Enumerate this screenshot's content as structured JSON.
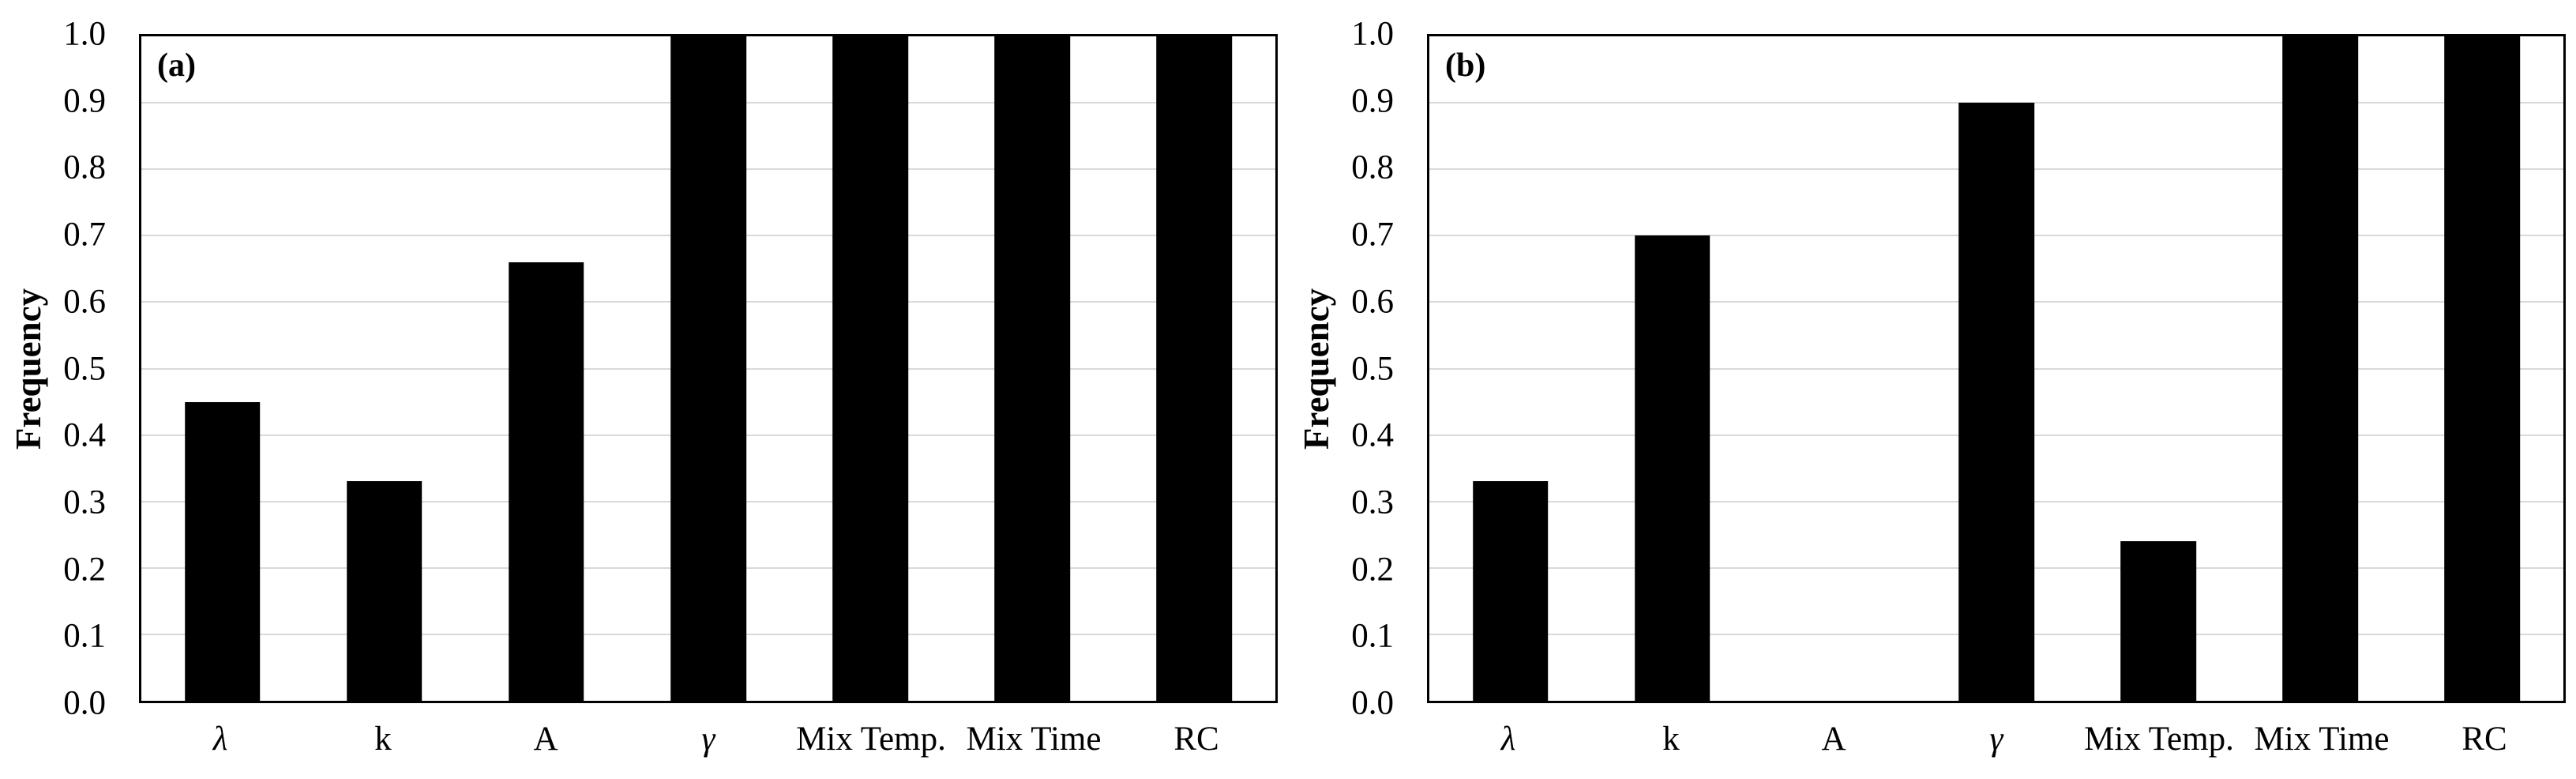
{
  "figure": {
    "background": "#ffffff",
    "text_color": "#000000",
    "panel_count": 2
  },
  "chart_data": [
    {
      "type": "bar",
      "panel_label": "(a)",
      "ylabel": "Frequency",
      "categories": [
        "λ",
        "k",
        "A",
        "γ",
        "Mix Temp.",
        "Mix Time",
        "RC"
      ],
      "values": [
        0.45,
        0.33,
        0.66,
        1.0,
        1.0,
        1.0,
        1.0
      ],
      "ylim": [
        0.0,
        1.0
      ],
      "ytick_step": 0.1,
      "ytick_labels": [
        "1.0",
        "0.9",
        "0.8",
        "0.7",
        "0.6",
        "0.5",
        "0.4",
        "0.3",
        "0.2",
        "0.1",
        "0.0"
      ],
      "xlabel": "",
      "grid": true,
      "gridline_color": "#d9d9d9",
      "axis_color": "#000000",
      "bar_color": "#000000",
      "italic_categories": [
        "λ",
        "γ"
      ],
      "legend": "none"
    },
    {
      "type": "bar",
      "panel_label": "(b)",
      "ylabel": "Frequency",
      "categories": [
        "λ",
        "k",
        "A",
        "γ",
        "Mix Temp.",
        "Mix Time",
        "RC"
      ],
      "values": [
        0.33,
        0.7,
        0.0,
        0.9,
        0.24,
        1.0,
        1.0
      ],
      "ylim": [
        0.0,
        1.0
      ],
      "ytick_step": 0.1,
      "ytick_labels": [
        "1.0",
        "0.9",
        "0.8",
        "0.7",
        "0.6",
        "0.5",
        "0.4",
        "0.3",
        "0.2",
        "0.1",
        "0.0"
      ],
      "xlabel": "",
      "grid": true,
      "gridline_color": "#d9d9d9",
      "axis_color": "#000000",
      "bar_color": "#000000",
      "italic_categories": [
        "λ",
        "γ"
      ],
      "legend": "none"
    }
  ]
}
